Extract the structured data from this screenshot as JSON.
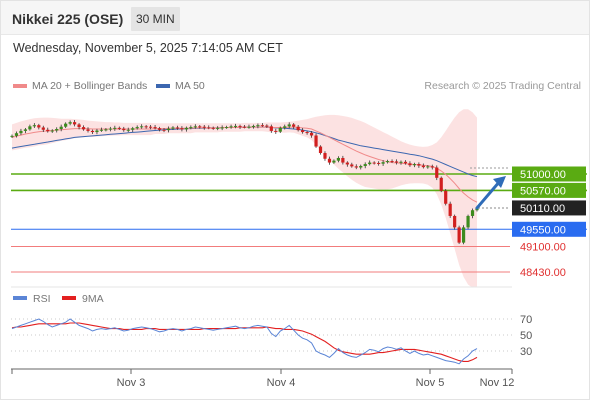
{
  "header": {
    "title": "Nikkei 225 (OSE)",
    "timeframe": "30 MIN"
  },
  "date": "Wednesday, November 5, 2025 7:14:05 AM CET",
  "legend": {
    "ma20": "MA 20 + Bollinger Bands",
    "ma50": "MA 50"
  },
  "credit": "Research © 2025 Trading Central",
  "rsi_legend": {
    "rsi": "RSI",
    "ma9": "9MA"
  },
  "colors": {
    "ma20": "#f08a8a",
    "band": "#fbd6d6",
    "ma50": "#3c67b0",
    "green": "#5aab12",
    "blue_level": "#2a6cf0",
    "red_level": "#f27c7c",
    "candle_up": "#3d8b1e",
    "candle_down": "#d11f1f",
    "rsi": "#5b85d6",
    "rsi_ma": "#e32020",
    "arrow": "#2f6cb8"
  },
  "chart_data": [
    {
      "type": "candlestick",
      "x_tick_labels": [
        "Nov 3",
        "Nov 4",
        "Nov 5",
        "Nov 12"
      ],
      "ylim": [
        48200,
        52250
      ],
      "levels": [
        {
          "value": 51000,
          "label": "51000.00",
          "style": "resistance-green"
        },
        {
          "value": 50570,
          "label": "50570.00",
          "style": "resistance-green"
        },
        {
          "value": 50110,
          "label": "50110.00",
          "style": "current-price"
        },
        {
          "value": 49550,
          "label": "49550.00",
          "style": "pivot-blue"
        },
        {
          "value": 49100,
          "label": "49100.00",
          "style": "support-red"
        },
        {
          "value": 48430,
          "label": "48430.00",
          "style": "support-red"
        }
      ],
      "close": [
        52000,
        52070,
        52130,
        52170,
        52250,
        52280,
        52220,
        52160,
        52120,
        52140,
        52180,
        52240,
        52320,
        52360,
        52300,
        52230,
        52170,
        52130,
        52100,
        52140,
        52160,
        52170,
        52190,
        52210,
        52190,
        52150,
        52160,
        52200,
        52230,
        52250,
        52240,
        52230,
        52200,
        52160,
        52150,
        52190,
        52220,
        52200,
        52170,
        52210,
        52230,
        52250,
        52240,
        52220,
        52210,
        52200,
        52210,
        52220,
        52230,
        52250,
        52260,
        52240,
        52230,
        52240,
        52260,
        52280,
        52270,
        52250,
        52130,
        52110,
        52210,
        52250,
        52300,
        52240,
        52150,
        52100,
        52080,
        52010,
        51720,
        51550,
        51400,
        51300,
        51350,
        51420,
        51300,
        51250,
        51200,
        51170,
        51210,
        51260,
        51300,
        51290,
        51270,
        51310,
        51340,
        51330,
        51300,
        51320,
        51280,
        51230,
        51260,
        51220,
        51180,
        51200,
        51170,
        50900,
        50560,
        50220,
        49900,
        49600,
        49200,
        49600,
        49900,
        50050,
        50110
      ],
      "ma20": [
        51960,
        51990,
        52020,
        52050,
        52070,
        52090,
        52110,
        52120,
        52130,
        52140,
        52150,
        52160,
        52170,
        52180,
        52190,
        52190,
        52190,
        52190,
        52180,
        52180,
        52180,
        52180,
        52180,
        52180,
        52180,
        52180,
        52180,
        52180,
        52180,
        52180,
        52180,
        52180,
        52190,
        52190,
        52190,
        52200,
        52200,
        52200,
        52200,
        52200,
        52200,
        52210,
        52210,
        52210,
        52210,
        52210,
        52210,
        52220,
        52220,
        52220,
        52220,
        52220,
        52230,
        52230,
        52230,
        52230,
        52230,
        52230,
        52220,
        52220,
        52220,
        52220,
        52230,
        52230,
        52220,
        52210,
        52200,
        52180,
        52130,
        52080,
        52020,
        51960,
        51900,
        51840,
        51780,
        51720,
        51660,
        51600,
        51550,
        51500,
        51460,
        51420,
        51380,
        51350,
        51320,
        51300,
        51290,
        51280,
        51270,
        51260,
        51250,
        51240,
        51230,
        51220,
        51200,
        51150,
        51080,
        50990,
        50880,
        50760,
        50620,
        50500,
        50400,
        50320,
        50260
      ],
      "ma50": [
        51680,
        51700,
        51720,
        51740,
        51760,
        51780,
        51800,
        51820,
        51840,
        51860,
        51880,
        51900,
        51920,
        51940,
        51960,
        51970,
        51980,
        51990,
        52000,
        52010,
        52020,
        52030,
        52040,
        52050,
        52060,
        52070,
        52080,
        52090,
        52100,
        52110,
        52120,
        52130,
        52140,
        52150,
        52160,
        52170,
        52170,
        52180,
        52180,
        52190,
        52190,
        52200,
        52200,
        52200,
        52210,
        52210,
        52210,
        52220,
        52220,
        52220,
        52220,
        52220,
        52230,
        52230,
        52230,
        52230,
        52230,
        52230,
        52220,
        52210,
        52210,
        52200,
        52190,
        52180,
        52170,
        52150,
        52130,
        52110,
        52080,
        52050,
        52010,
        51970,
        51930,
        51890,
        51860,
        51830,
        51800,
        51770,
        51740,
        51720,
        51700,
        51680,
        51660,
        51640,
        51620,
        51600,
        51580,
        51560,
        51540,
        51520,
        51500,
        51480,
        51450,
        51420,
        51390,
        51350,
        51300,
        51250,
        51200,
        51150,
        51100,
        51050,
        51000,
        50960,
        50930
      ],
      "bb_upper": [
        52300,
        52340,
        52380,
        52410,
        52440,
        52460,
        52470,
        52480,
        52480,
        52470,
        52460,
        52450,
        52450,
        52450,
        52440,
        52430,
        52420,
        52400,
        52390,
        52380,
        52370,
        52360,
        52360,
        52350,
        52350,
        52340,
        52340,
        52340,
        52340,
        52340,
        52340,
        52340,
        52330,
        52330,
        52330,
        52330,
        52330,
        52330,
        52330,
        52330,
        52330,
        52330,
        52330,
        52330,
        52330,
        52330,
        52330,
        52330,
        52330,
        52330,
        52330,
        52330,
        52340,
        52340,
        52340,
        52340,
        52340,
        52350,
        52350,
        52350,
        52350,
        52360,
        52370,
        52380,
        52400,
        52420,
        52440,
        52470,
        52500,
        52520,
        52540,
        52550,
        52550,
        52540,
        52520,
        52500,
        52470,
        52430,
        52390,
        52340,
        52280,
        52220,
        52160,
        52100,
        52040,
        51980,
        51920,
        51860,
        51810,
        51770,
        51740,
        51720,
        51710,
        51720,
        51760,
        51830,
        51960,
        52130,
        52310,
        52480,
        52620,
        52700,
        52700,
        52620,
        52480
      ],
      "bb_lower": [
        51620,
        51640,
        51660,
        51690,
        51700,
        51720,
        51750,
        51760,
        51780,
        51810,
        51840,
        51870,
        51890,
        51910,
        51940,
        51950,
        51960,
        51980,
        51970,
        51980,
        51990,
        52000,
        52000,
        52010,
        52010,
        52020,
        52020,
        52020,
        52020,
        52020,
        52020,
        52020,
        52050,
        52050,
        52050,
        52070,
        52070,
        52070,
        52070,
        52070,
        52070,
        52090,
        52090,
        52090,
        52090,
        52090,
        52090,
        52110,
        52110,
        52110,
        52110,
        52110,
        52120,
        52120,
        52120,
        52120,
        52120,
        52110,
        52090,
        52090,
        52090,
        52080,
        52090,
        52080,
        52040,
        52000,
        51960,
        51890,
        51760,
        51640,
        51500,
        51370,
        51250,
        51140,
        51040,
        50940,
        50850,
        50770,
        50710,
        50660,
        50640,
        50620,
        50600,
        50600,
        50600,
        50620,
        50660,
        50700,
        50730,
        50750,
        50760,
        50760,
        50750,
        50720,
        50640,
        50470,
        50200,
        49850,
        49450,
        49040,
        48620,
        48300,
        48100,
        48020,
        48040
      ],
      "tick_positions": [
        24,
        54,
        85,
        105
      ]
    },
    {
      "type": "line",
      "title": "RSI",
      "y_tick_labels": [
        "70",
        "50",
        "30"
      ],
      "ylim": [
        0,
        100
      ],
      "series": [
        {
          "name": "RSI",
          "values": [
            58,
            60,
            62,
            64,
            66,
            68,
            70,
            67,
            63,
            60,
            62,
            64,
            66,
            70,
            66,
            62,
            60,
            58,
            55,
            57,
            58,
            57,
            58,
            59,
            57,
            55,
            56,
            58,
            59,
            60,
            59,
            58,
            56,
            54,
            55,
            57,
            58,
            57,
            55,
            57,
            58,
            60,
            59,
            58,
            57,
            56,
            57,
            58,
            59,
            60,
            61,
            59,
            58,
            59,
            61,
            62,
            61,
            60,
            52,
            48,
            55,
            58,
            62,
            56,
            50,
            46,
            44,
            40,
            30,
            27,
            25,
            22,
            27,
            33,
            28,
            25,
            23,
            22,
            25,
            28,
            32,
            31,
            29,
            33,
            35,
            34,
            32,
            34,
            30,
            27,
            30,
            27,
            25,
            26,
            24,
            22,
            20,
            18,
            17,
            16,
            14,
            20,
            24,
            30,
            33
          ]
        },
        {
          "name": "9MA",
          "values": [
            59,
            60,
            60,
            61,
            62,
            63,
            64,
            64,
            64,
            64,
            64,
            64,
            64,
            65,
            65,
            65,
            64,
            63,
            62,
            61,
            60,
            59,
            58,
            58,
            58,
            57,
            57,
            57,
            57,
            57,
            58,
            58,
            58,
            57,
            57,
            57,
            57,
            57,
            57,
            57,
            57,
            57,
            57,
            58,
            58,
            58,
            58,
            58,
            58,
            58,
            58,
            59,
            59,
            59,
            59,
            59,
            59,
            60,
            59,
            58,
            58,
            57,
            57,
            57,
            56,
            55,
            53,
            51,
            48,
            45,
            42,
            38,
            34,
            31,
            29,
            28,
            27,
            26,
            26,
            26,
            26,
            27,
            28,
            28,
            29,
            30,
            31,
            32,
            32,
            32,
            32,
            31,
            30,
            29,
            28,
            27,
            26,
            24,
            22,
            20,
            18,
            17,
            17,
            19,
            22
          ]
        }
      ]
    }
  ]
}
